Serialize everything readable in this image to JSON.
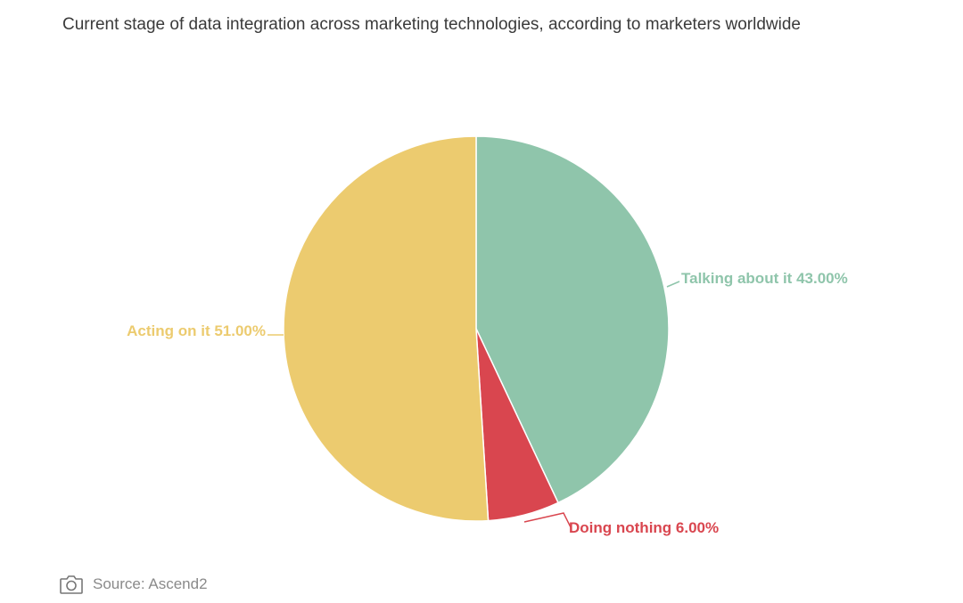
{
  "header": {
    "title": "Current stage of data integration across marketing technologies, according to marketers worldwide"
  },
  "footer": {
    "source_label": "Source: Ascend2",
    "icon": "camera-icon"
  },
  "chart_data": {
    "type": "pie",
    "title": "Current stage of data integration across marketing technologies, according to marketers worldwide",
    "slices": [
      {
        "label": "Talking about it",
        "value": 43.0,
        "display": "Talking about it 43.00%",
        "color": "#8fc5ab"
      },
      {
        "label": "Doing nothing",
        "value": 6.0,
        "display": "Doing nothing 6.00%",
        "color": "#d9464f"
      },
      {
        "label": "Acting on it",
        "value": 51.0,
        "display": "Acting on it 51.00%",
        "color": "#eccb6f"
      }
    ],
    "start_angle": "12 o'clock",
    "direction": "clockwise",
    "legend": "none",
    "labels": "outside with leader lines"
  }
}
